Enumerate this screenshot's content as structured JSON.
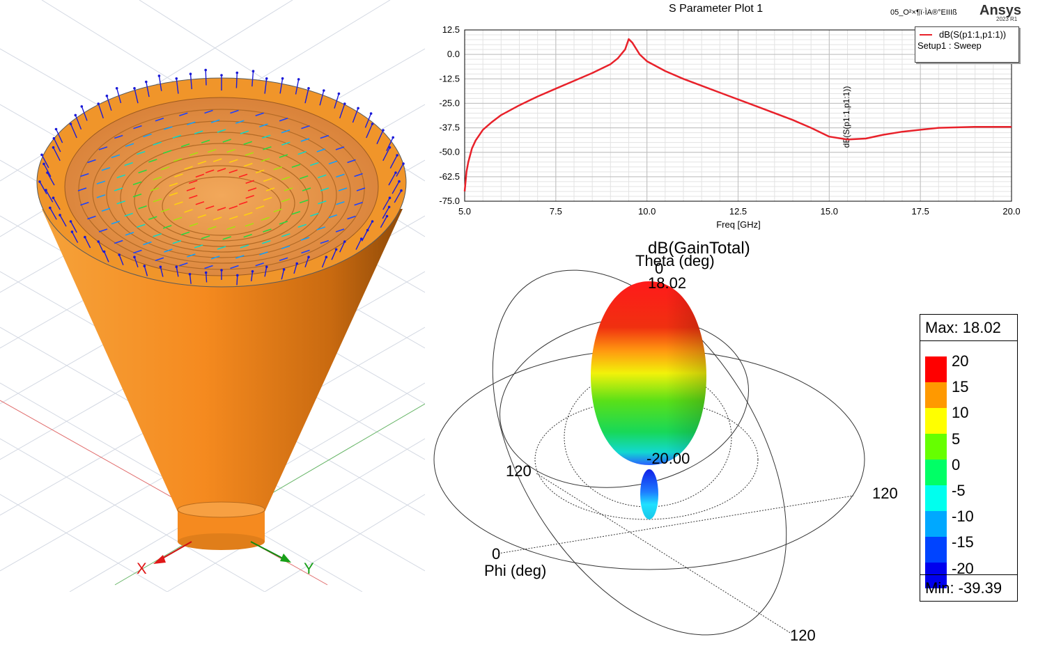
{
  "sparam": {
    "title": "S Parameter Plot 1",
    "project": "05_O²×¶ï·ÌA®°EIIIß",
    "brand": "Ansys",
    "brand_version": "2023 R1",
    "legend_trace": "dB(S(p1:1,p1:1))",
    "legend_setup": "Setup1 : Sweep"
  },
  "gain": {
    "title": "dB(GainTotal)",
    "theta_label": "Theta (deg)",
    "theta_zero": "0",
    "peak_value": "18.02",
    "inner_value": "-20.00",
    "phi_label": "Phi (deg)",
    "phi_zero": "0",
    "angle_left": "120",
    "angle_right": "120",
    "angle_bottom": "120"
  },
  "scale": {
    "max_label": "Max: 18.02",
    "min_label": "Min: -39.39",
    "levels": [
      "20",
      "15",
      "10",
      "5",
      "0",
      "-5",
      "-10",
      "-15",
      "-20"
    ],
    "colors": [
      "#ff0000",
      "#ff9900",
      "#ffff00",
      "#66ff00",
      "#00ff66",
      "#00ffee",
      "#00a8ff",
      "#0044ff",
      "#0000ee"
    ]
  },
  "model": {
    "axis_x": "X",
    "axis_y": "Y",
    "body_color": "#f58a1f"
  },
  "chart_data": {
    "type": "line",
    "title": "S Parameter Plot 1",
    "xlabel": "Freq [GHz]",
    "ylabel": "dB(S(p1:1,p1:1))",
    "xlim": [
      5.0,
      20.0
    ],
    "ylim": [
      -75.0,
      12.5
    ],
    "x_ticks": [
      "5.0",
      "7.5",
      "10.0",
      "12.5",
      "15.0",
      "17.5",
      "20.0"
    ],
    "y_ticks": [
      "12.5",
      "0.0",
      "-12.5",
      "-25.0",
      "-37.5",
      "-50.0",
      "-62.5",
      "-75.0"
    ],
    "grid": true,
    "legend": "top-right",
    "series": [
      {
        "name": "dB(S(p1:1,p1:1))",
        "color": "#e8212a",
        "x": [
          5.0,
          5.05,
          5.1,
          5.2,
          5.3,
          5.5,
          5.75,
          6.0,
          6.5,
          7.0,
          7.5,
          8.0,
          8.5,
          9.0,
          9.2,
          9.4,
          9.5,
          9.6,
          9.8,
          10.0,
          10.5,
          11.0,
          12.0,
          13.0,
          14.0,
          14.5,
          15.0,
          15.5,
          16.0,
          16.5,
          17.0,
          17.5,
          18.0,
          19.0,
          20.0
        ],
        "y": [
          -70.0,
          -60.0,
          -55.0,
          -48.0,
          -44.0,
          -38.5,
          -34.5,
          -31.0,
          -26.0,
          -21.5,
          -17.5,
          -13.5,
          -9.5,
          -5.0,
          -2.0,
          2.5,
          7.8,
          6.0,
          0.0,
          -3.5,
          -8.5,
          -12.5,
          -19.5,
          -26.5,
          -33.5,
          -37.5,
          -42.0,
          -43.5,
          -43.0,
          -41.0,
          -39.5,
          -38.5,
          -37.5,
          -37.0,
          -37.0
        ]
      }
    ]
  }
}
